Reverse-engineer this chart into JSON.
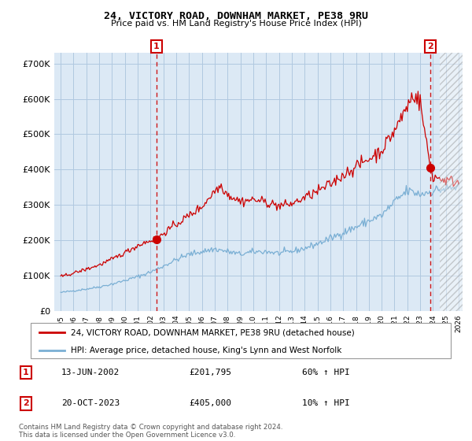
{
  "title": "24, VICTORY ROAD, DOWNHAM MARKET, PE38 9RU",
  "subtitle": "Price paid vs. HM Land Registry's House Price Index (HPI)",
  "footer": "Contains HM Land Registry data © Crown copyright and database right 2024.\nThis data is licensed under the Open Government Licence v3.0.",
  "legend_line1": "24, VICTORY ROAD, DOWNHAM MARKET, PE38 9RU (detached house)",
  "legend_line2": "HPI: Average price, detached house, King's Lynn and West Norfolk",
  "sale1_label": "1",
  "sale1_date": "13-JUN-2002",
  "sale1_price": "£201,795",
  "sale1_hpi": "60% ↑ HPI",
  "sale2_label": "2",
  "sale2_date": "20-OCT-2023",
  "sale2_price": "£405,000",
  "sale2_hpi": "10% ↑ HPI",
  "red_color": "#cc0000",
  "blue_color": "#7aafd4",
  "dashed_color": "#cc0000",
  "bg_chart": "#dce9f5",
  "grid_color": "#b0c8e0",
  "ylim": [
    0,
    730000
  ],
  "yticks": [
    0,
    100000,
    200000,
    300000,
    400000,
    500000,
    600000,
    700000
  ],
  "ytick_labels": [
    "£0",
    "£100K",
    "£200K",
    "£300K",
    "£400K",
    "£500K",
    "£600K",
    "£700K"
  ],
  "sale1_x": 2002.46,
  "sale1_y": 201795,
  "sale2_x": 2023.8,
  "sale2_y": 405000,
  "vline1_x": 2002.46,
  "vline2_x": 2023.8,
  "xmin": 1995.0,
  "xmax": 2026.0,
  "hatch_start": 2024.5
}
